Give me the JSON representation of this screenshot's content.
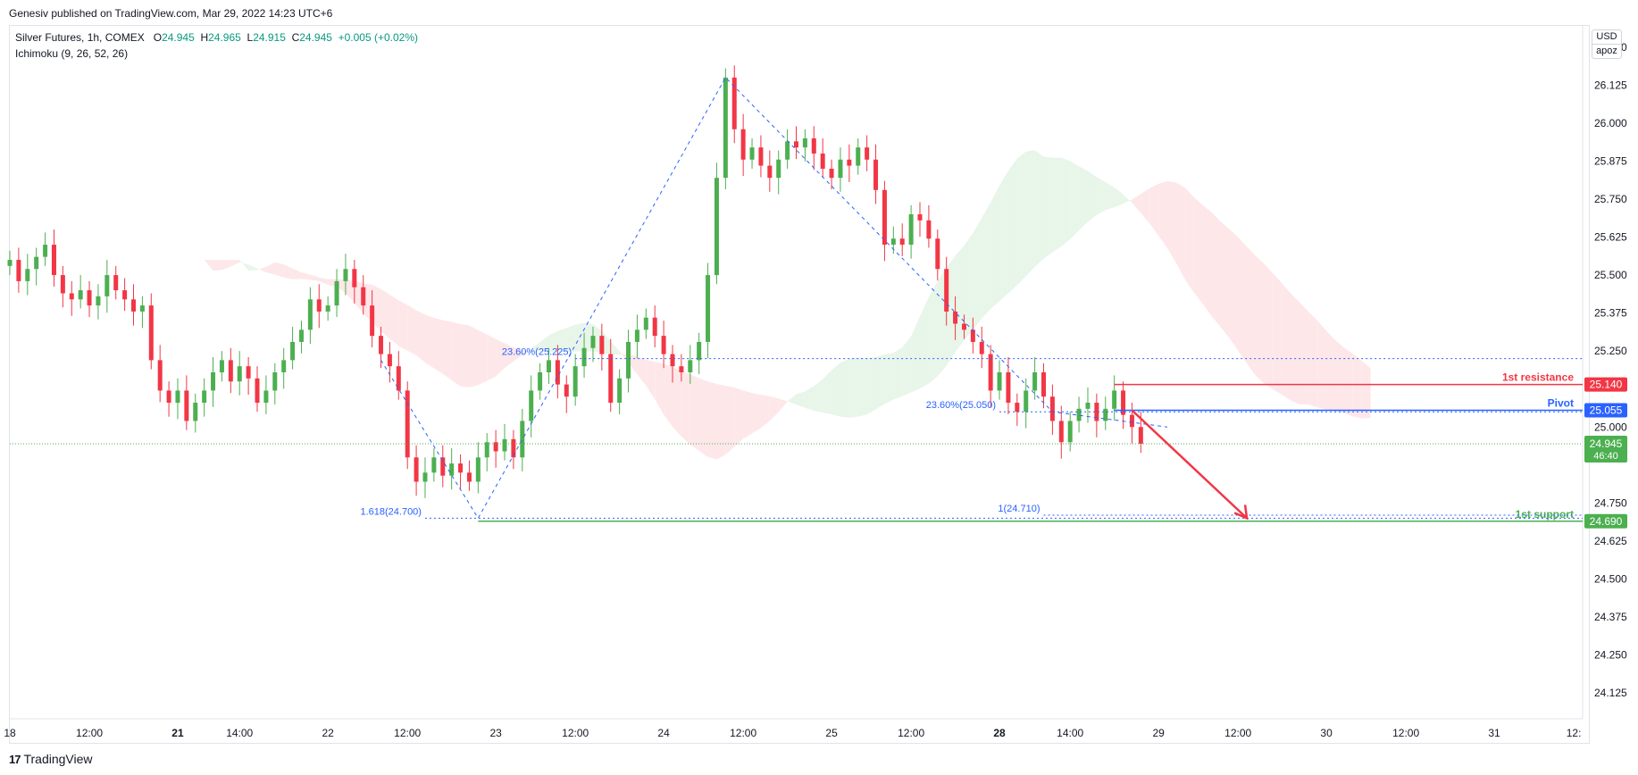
{
  "publisher": "Genesiv published on TradingView.com, Mar 29, 2022 14:23 UTC+6",
  "legend": {
    "symbol": "Silver Futures, 1h, COMEX",
    "o_label": "O",
    "o": "24.945",
    "h_label": "H",
    "h": "24.965",
    "l_label": "L",
    "l": "24.915",
    "c_label": "C",
    "c": "24.945",
    "change": "+0.005 (+0.02%)",
    "indicator": "Ichimoku (9, 26, 52, 26)"
  },
  "currency": "USD",
  "currency_sub": "apoz",
  "brand": "TradingView",
  "colors": {
    "up": "#4caf50",
    "down": "#f23645",
    "fib": "#2962ff",
    "cloud_green": "#e8f5e9",
    "cloud_red": "#fde7e9",
    "resistance": "#f23645",
    "pivot": "#2962ff",
    "support": "#4caf50"
  },
  "chart_data": {
    "type": "candlestick",
    "symbol": "Silver Futures, 1h, COMEX",
    "ylim": [
      24.04,
      26.32
    ],
    "y_ticks": [
      "26.250",
      "26.125",
      "26.000",
      "25.875",
      "25.750",
      "25.625",
      "25.500",
      "25.375",
      "25.250",
      "25.000",
      "24.750",
      "24.625",
      "24.500",
      "24.375",
      "24.250",
      "24.125"
    ],
    "x_ticks": [
      {
        "label": "18",
        "x": 0
      },
      {
        "label": "12:00",
        "x": 9
      },
      {
        "label": "21",
        "x": 19
      },
      {
        "label": "14:00",
        "x": 26
      },
      {
        "label": "22",
        "x": 36
      },
      {
        "label": "12:00",
        "x": 45
      },
      {
        "label": "23",
        "x": 55
      },
      {
        "label": "12:00",
        "x": 64
      },
      {
        "label": "24",
        "x": 74
      },
      {
        "label": "12:00",
        "x": 83
      },
      {
        "label": "25",
        "x": 93
      },
      {
        "label": "12:00",
        "x": 102
      },
      {
        "label": "28",
        "x": 112
      },
      {
        "label": "14:00",
        "x": 120
      },
      {
        "label": "29",
        "x": 130
      },
      {
        "label": "12:00",
        "x": 139
      },
      {
        "label": "30",
        "x": 149
      },
      {
        "label": "12:00",
        "x": 158
      },
      {
        "label": "31",
        "x": 168
      },
      {
        "label": "12:",
        "x": 177
      }
    ],
    "x_range": [
      0,
      178
    ],
    "closes": [
      25.55,
      25.48,
      25.52,
      25.56,
      25.6,
      25.5,
      25.44,
      25.42,
      25.45,
      25.4,
      25.43,
      25.5,
      25.45,
      25.42,
      25.38,
      25.4,
      25.22,
      25.12,
      25.08,
      25.12,
      25.02,
      25.08,
      25.12,
      25.18,
      25.22,
      25.15,
      25.2,
      25.16,
      25.08,
      25.12,
      25.18,
      25.22,
      25.28,
      25.32,
      25.42,
      25.38,
      25.4,
      25.48,
      25.52,
      25.46,
      25.4,
      25.3,
      25.24,
      25.2,
      25.12,
      24.9,
      24.82,
      24.85,
      24.9,
      24.84,
      24.88,
      24.85,
      24.82,
      24.9,
      24.95,
      24.92,
      24.96,
      24.9,
      25.02,
      25.12,
      25.18,
      25.22,
      25.14,
      25.1,
      25.2,
      25.26,
      25.3,
      25.24,
      25.08,
      25.16,
      25.28,
      25.32,
      25.36,
      25.3,
      25.24,
      25.2,
      25.18,
      25.22,
      25.28,
      25.5,
      25.82,
      26.15,
      25.98,
      25.88,
      25.92,
      25.86,
      25.82,
      25.88,
      25.94,
      25.92,
      25.95,
      25.9,
      25.85,
      25.82,
      25.88,
      25.86,
      25.92,
      25.88,
      25.78,
      25.6,
      25.62,
      25.6,
      25.7,
      25.68,
      25.62,
      25.52,
      25.38,
      25.34,
      25.32,
      25.28,
      25.24,
      25.12,
      25.18,
      25.08,
      25.05,
      25.12,
      25.18,
      25.1,
      25.02,
      24.95,
      25.02,
      25.06,
      25.08,
      25.02,
      25.06,
      25.12,
      25.04,
      25.0,
      24.945
    ],
    "levels": [
      {
        "name": "1st resistance",
        "value": 25.14,
        "label": "25.140"
      },
      {
        "name": "Pivot",
        "value": 25.055,
        "label": "25.055"
      },
      {
        "name": "1st support",
        "value": 24.69,
        "label": "24.690"
      }
    ],
    "current": {
      "value": 24.945,
      "label": "24.945",
      "countdown": "46:40"
    },
    "fib_labels": [
      {
        "text": "1.618(24.700)",
        "value": 24.7
      },
      {
        "text": "23.60%(25.225)",
        "value": 25.225
      },
      {
        "text": "23.60%(25.050)",
        "value": 25.05
      },
      {
        "text": "1(24.710)",
        "value": 24.71
      }
    ],
    "annotations": [
      "1st resistance",
      "Pivot",
      "1st support"
    ]
  }
}
